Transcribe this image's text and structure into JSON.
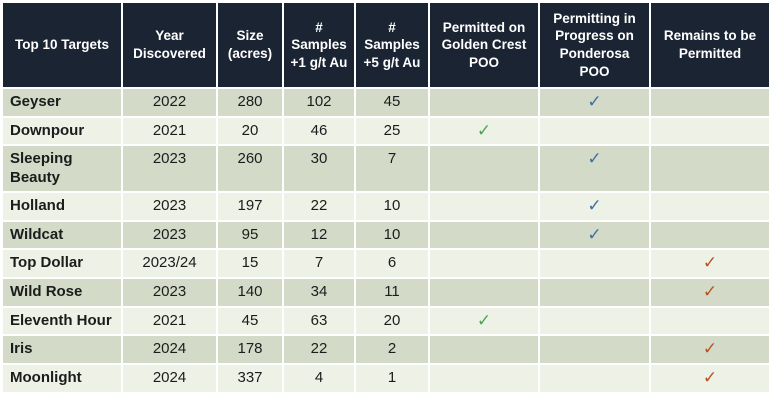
{
  "colors": {
    "header_bg": "#1b2433",
    "row_dark": "#d3dbc8",
    "row_light": "#eef1e6",
    "check_green": "#4da653",
    "check_blue": "#3f6fa4",
    "check_orange": "#b5541e",
    "header_text": "#ffffff",
    "body_text": "#1c1c1c"
  },
  "check_glyph": "✓",
  "chart_data": {
    "type": "table",
    "title": "Top 10 Targets",
    "columns": [
      "Top 10 Targets",
      "Year Discovered",
      "Size (acres)",
      "# Samples +1 g/t Au",
      "# Samples +5 g/t Au",
      "Permitted on Golden Crest POO",
      "Permitting in Progress on Ponderosa POO",
      "Remains to be Permitted"
    ],
    "rows": [
      {
        "target": "Geyser",
        "year_discovered": "2022",
        "size_acres": "280",
        "samples_1gt": "102",
        "samples_5gt": "45",
        "permitted_golden_crest": "",
        "permitting_ponderosa": "blue",
        "remains_to_be_permitted": ""
      },
      {
        "target": "Downpour",
        "year_discovered": "2021",
        "size_acres": "20",
        "samples_1gt": "46",
        "samples_5gt": "25",
        "permitted_golden_crest": "green",
        "permitting_ponderosa": "",
        "remains_to_be_permitted": ""
      },
      {
        "target": "Sleeping Beauty",
        "year_discovered": "2023",
        "size_acres": "260",
        "samples_1gt": "30",
        "samples_5gt": "7",
        "permitted_golden_crest": "",
        "permitting_ponderosa": "blue",
        "remains_to_be_permitted": ""
      },
      {
        "target": "Holland",
        "year_discovered": "2023",
        "size_acres": "197",
        "samples_1gt": "22",
        "samples_5gt": "10",
        "permitted_golden_crest": "",
        "permitting_ponderosa": "blue",
        "remains_to_be_permitted": ""
      },
      {
        "target": "Wildcat",
        "year_discovered": "2023",
        "size_acres": "95",
        "samples_1gt": "12",
        "samples_5gt": "10",
        "permitted_golden_crest": "",
        "permitting_ponderosa": "blue",
        "remains_to_be_permitted": ""
      },
      {
        "target": "Top Dollar",
        "year_discovered": "2023/24",
        "size_acres": "15",
        "samples_1gt": "7",
        "samples_5gt": "6",
        "permitted_golden_crest": "",
        "permitting_ponderosa": "",
        "remains_to_be_permitted": "orange"
      },
      {
        "target": "Wild Rose",
        "year_discovered": "2023",
        "size_acres": "140",
        "samples_1gt": "34",
        "samples_5gt": "11",
        "permitted_golden_crest": "",
        "permitting_ponderosa": "",
        "remains_to_be_permitted": "orange"
      },
      {
        "target": "Eleventh Hour",
        "year_discovered": "2021",
        "size_acres": "45",
        "samples_1gt": "63",
        "samples_5gt": "20",
        "permitted_golden_crest": "green",
        "permitting_ponderosa": "",
        "remains_to_be_permitted": ""
      },
      {
        "target": "Iris",
        "year_discovered": "2024",
        "size_acres": "178",
        "samples_1gt": "22",
        "samples_5gt": "2",
        "permitted_golden_crest": "",
        "permitting_ponderosa": "",
        "remains_to_be_permitted": "orange"
      },
      {
        "target": "Moonlight",
        "year_discovered": "2024",
        "size_acres": "337",
        "samples_1gt": "4",
        "samples_5gt": "1",
        "permitted_golden_crest": "",
        "permitting_ponderosa": "",
        "remains_to_be_permitted": "orange"
      }
    ]
  }
}
